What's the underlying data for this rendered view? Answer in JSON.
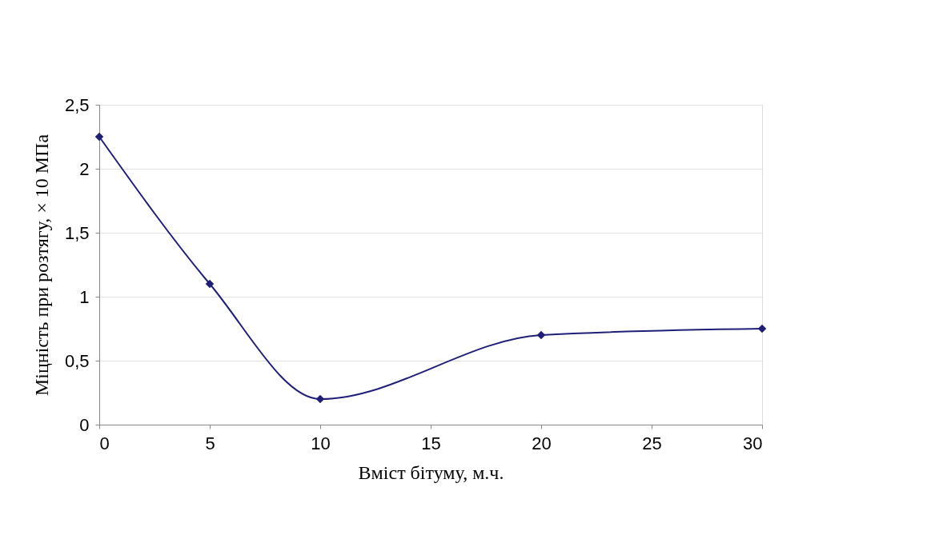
{
  "chart_data": {
    "type": "line",
    "xlabel": "Вміст бітуму, м.ч.",
    "ylabel": "Міцність при розтягу, × 10 МПа",
    "x": [
      0,
      5,
      10,
      20,
      30
    ],
    "series": [
      {
        "color": "#1f1f7a",
        "values": [
          2.25,
          1.1,
          0.2,
          0.7,
          0.75
        ]
      }
    ],
    "xlim": [
      0,
      30
    ],
    "xticks": [
      0,
      5,
      10,
      15,
      20,
      25,
      30
    ],
    "ylim": [
      0,
      2.5
    ],
    "yticks": [
      0,
      {
        "value": 0.5,
        "label": "0,5"
      },
      1,
      {
        "value": 1.5,
        "label": "1,5"
      },
      2,
      {
        "value": 2.5,
        "label": "2,5"
      }
    ],
    "grid": "y",
    "marker": "diamond",
    "line_style": "solid"
  }
}
